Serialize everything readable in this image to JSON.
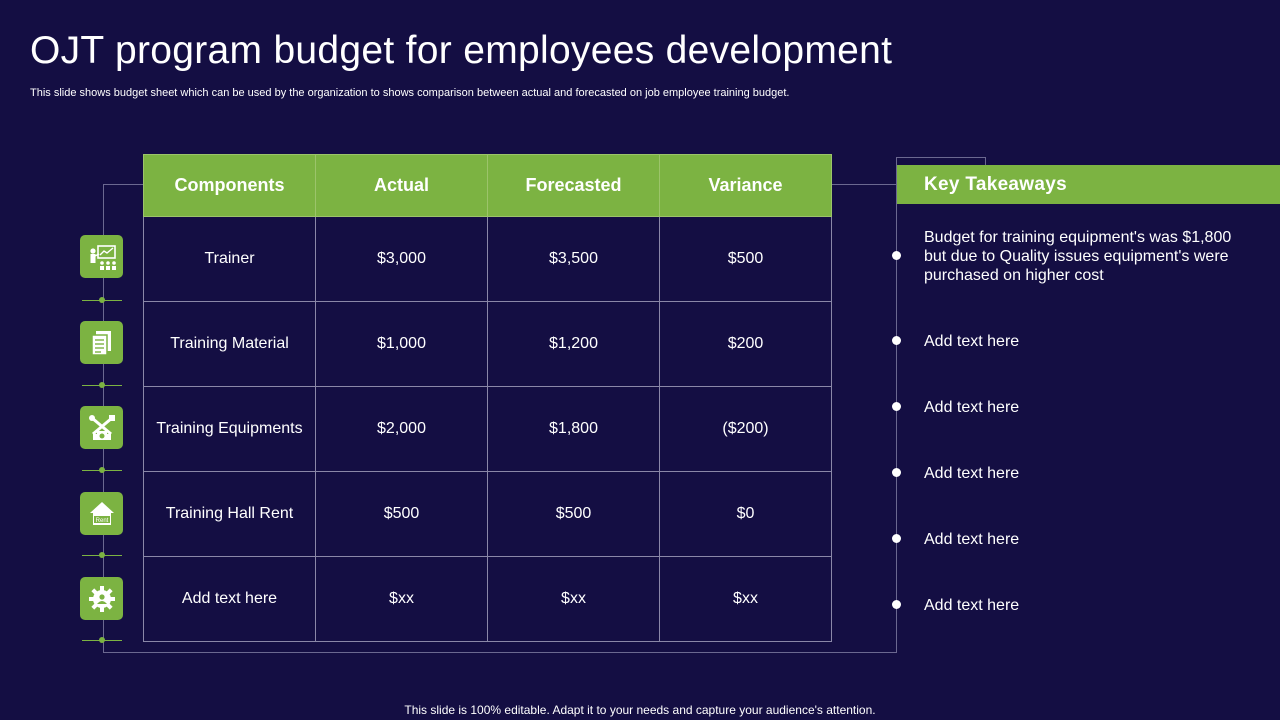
{
  "slide": {
    "title": "OJT program budget for employees development",
    "subtitle": "This slide shows budget sheet which can be used by the organization to shows comparison between actual and forecasted on job employee training budget.",
    "footer": "This slide is 100% editable. Adapt it to your needs and capture your audience's attention."
  },
  "table": {
    "headers": [
      "Components",
      "Actual",
      "Forecasted",
      "Variance"
    ],
    "rows": [
      {
        "component": "Trainer",
        "actual": "$3,000",
        "forecasted": "$3,500",
        "variance": "$500",
        "icon": "trainer-presentation-icon"
      },
      {
        "component": "Training Material",
        "actual": "$1,000",
        "forecasted": "$1,200",
        "variance": "$200",
        "icon": "documents-icon"
      },
      {
        "component": "Training Equipments",
        "actual": "$2,000",
        "forecasted": "$1,800",
        "variance": "($200)",
        "icon": "tools-icon"
      },
      {
        "component": "Training Hall Rent",
        "actual": "$500",
        "forecasted": "$500",
        "variance": "$0",
        "icon": "rent-house-icon"
      },
      {
        "component": "Add text here",
        "actual": "$xx",
        "forecasted": "$xx",
        "variance": "$xx",
        "icon": "gear-icon"
      }
    ]
  },
  "icon_labels": {
    "rent": "Rent"
  },
  "takeaways": {
    "title": "Key Takeaways",
    "items": [
      "Budget for training equipment's was $1,800 but due to Quality  issues equipment's were purchased on higher cost",
      "Add text here",
      "Add text here",
      "Add text here",
      "Add text here",
      "Add text here"
    ]
  },
  "colors": {
    "background": "#140e43",
    "accent": "#7cb342",
    "text": "#ffffff"
  }
}
